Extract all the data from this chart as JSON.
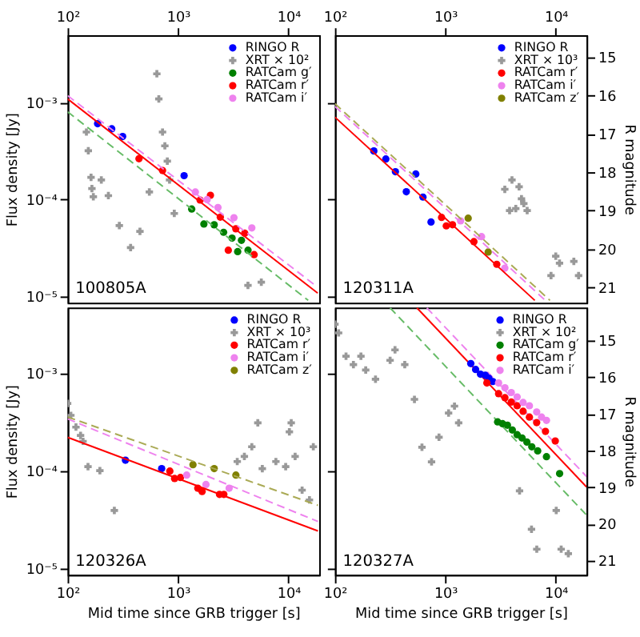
{
  "chart_data": [
    {
      "type": "scatter",
      "ylabel": "Flux density [Jy]",
      "annotations": [
        "100805A"
      ],
      "legend": "top right",
      "grid": false,
      "xlim": [
        100,
        19000
      ],
      "xticks": [
        {
          "value": 100,
          "label": "10²"
        },
        {
          "value": 1000,
          "label": "10³"
        },
        {
          "value": 10000,
          "label": "10⁴"
        }
      ],
      "ylim": [
        8.6e-06,
        0.005
      ],
      "yticks": [
        {
          "value": 1e-05,
          "label": "10⁻⁵"
        },
        {
          "value": 0.0001,
          "label": "10⁻⁴"
        },
        {
          "value": 0.001,
          "label": "10⁻³"
        }
      ],
      "log": "xy",
      "series": [
        {
          "name": "RINGO R",
          "color": "#0000ff",
          "marker": "circle",
          "x": [
            187,
            251,
            315,
            1135
          ],
          "values": [
            0.00061,
            0.00054,
            0.00045,
            0.000177
          ]
        },
        {
          "name": "XRT × 10²",
          "color": "#999999",
          "marker": "cross",
          "x": [
            148,
            154,
            163,
            166,
            171,
            202,
            234,
            294,
            372,
            452,
            550,
            643,
            670,
            724,
            760,
            800,
            838,
            925,
            4300,
            5680
          ],
          "values": [
            0.0005,
            0.00032,
            0.00017,
            0.00013,
            0.000107,
            0.00016,
            0.00011,
            5.4e-05,
            3.2e-05,
            4.7e-05,
            0.00012,
            0.002,
            0.0011,
            0.0005,
            0.00036,
            0.00025,
            0.00016,
            7.2e-05,
            1.3e-05,
            1.4e-05
          ]
        },
        {
          "name": "RATCam g′",
          "color": "#008000",
          "marker": "circle",
          "x": [
            1330,
            1715,
            2126,
            2587,
            3086,
            3470,
            3753,
            4305
          ],
          "values": [
            8e-05,
            5.6e-05,
            5.5e-05,
            4.6e-05,
            4e-05,
            2.9e-05,
            3.8e-05,
            3e-05
          ]
        },
        {
          "name": "RATCam r′",
          "color": "#ff0000",
          "marker": "circle",
          "x": [
            443,
            724,
            1585,
            1966,
            2415,
            2853,
            3337,
            4020,
            4890
          ],
          "values": [
            0.000265,
            0.0002,
            9.9e-05,
            0.000111,
            6.6e-05,
            3e-05,
            5e-05,
            4.5e-05,
            2.7e-05
          ]
        },
        {
          "name": "RATCam i′",
          "color": "#ee82ee",
          "marker": "circle",
          "x": [
            1436,
            1835,
            2300,
            3210,
            4660
          ],
          "values": [
            0.00012,
            0.0001,
            8.3e-05,
            6.5e-05,
            5.1e-05
          ]
        },
        {
          "type": "line",
          "color": "#ff0000",
          "line_style": "solid",
          "x": [
            100,
            18400
          ],
          "values": [
            0.0011,
            1.08e-05
          ]
        },
        {
          "type": "line",
          "color": "#66bb66",
          "line_style": "dashed",
          "x": [
            100,
            15100
          ],
          "values": [
            0.00081,
            9.1e-06
          ]
        },
        {
          "type": "line",
          "color": "#ee82ee",
          "line_style": "dashed",
          "x": [
            100,
            17500
          ],
          "values": [
            0.00119,
            1.3e-05
          ]
        }
      ]
    },
    {
      "type": "scatter",
      "y2label": "R magnitude",
      "annotations": [
        "120311A"
      ],
      "legend": "top right",
      "grid": false,
      "tick_labels": "x",
      "xlim": [
        100,
        19000
      ],
      "xticks": [
        {
          "value": 100,
          "label": "10²"
        },
        {
          "value": 1000,
          "label": "10³"
        },
        {
          "value": 10000,
          "label": "10⁴"
        }
      ],
      "ylim": [
        8.6e-06,
        0.005
      ],
      "yticks": [
        {
          "value": 1e-05,
          "label": null
        },
        {
          "value": 0.0001,
          "label": null
        },
        {
          "value": 0.001,
          "label": null
        }
      ],
      "log": "xy",
      "y2lim": [
        21.4,
        14.44
      ],
      "y2ticks": [
        {
          "value": 15,
          "label": "15"
        },
        {
          "value": 16,
          "label": "16"
        },
        {
          "value": 17,
          "label": "17"
        },
        {
          "value": 18,
          "label": "18"
        },
        {
          "value": 19,
          "label": "19"
        },
        {
          "value": 20,
          "label": "20"
        },
        {
          "value": 21,
          "label": "21"
        }
      ],
      "series": [
        {
          "name": "RINGO R",
          "color": "#0000ff",
          "marker": "circle",
          "axis": "y2",
          "x": [
            225,
            289,
            353,
            443,
            540,
            627,
            742
          ],
          "values": [
            17.45,
            17.66,
            17.99,
            18.51,
            18.05,
            18.65,
            19.3
          ]
        },
        {
          "name": "XRT × 10³",
          "color": "#999999",
          "marker": "cross",
          "x": [
            3456,
            3820,
            4013,
            4345,
            4657,
            4893,
            5140,
            5510,
            9060,
            10000,
            10820,
            14580,
            16100
          ],
          "values": [
            0.000128,
            7.7e-05,
            0.00016,
            8.1e-05,
            0.000136,
            0.000102,
            9.1e-05,
            7.7e-05,
            1.64e-05,
            2.6e-05,
            2.2e-05,
            2.3e-05,
            1.64e-05
          ]
        },
        {
          "name": "RATCam r′",
          "color": "#ff0000",
          "marker": "circle",
          "axis": "y2",
          "x": [
            924,
            1020,
            1161,
            1815,
            2922
          ],
          "values": [
            19.18,
            19.4,
            19.37,
            19.81,
            20.4
          ]
        },
        {
          "name": "RATCam i′",
          "color": "#ee82ee",
          "marker": "circle",
          "axis": "y2",
          "x": [
            1374,
            2127,
            3457
          ],
          "values": [
            19.27,
            19.68,
            20.5
          ]
        },
        {
          "name": "RATCam z′",
          "color": "#808000",
          "marker": "circle",
          "axis": "y2",
          "x": [
            1610,
            2443
          ],
          "values": [
            19.2,
            20.08
          ]
        },
        {
          "type": "line",
          "color": "#ff0000",
          "line_style": "solid",
          "axis": "y2",
          "x": [
            100,
            6460
          ],
          "values": [
            16.57,
            21.34
          ]
        },
        {
          "type": "line",
          "color": "#aaaa55",
          "line_style": "dashed",
          "axis": "y2",
          "x": [
            100,
            8870
          ],
          "values": [
            16.22,
            21.34
          ]
        },
        {
          "type": "line",
          "color": "#ee82ee",
          "line_style": "dashed",
          "axis": "y2",
          "x": [
            100,
            8040
          ],
          "values": [
            16.29,
            21.34
          ]
        }
      ]
    },
    {
      "type": "scatter",
      "ylabel": "Flux density [Jy]",
      "xlabel": "Mid time since GRB trigger [s]",
      "annotations": [
        "120326A"
      ],
      "legend": "top right",
      "grid": false,
      "xlim": [
        100,
        19000
      ],
      "xticks": [
        {
          "value": 100,
          "label": "10²"
        },
        {
          "value": 1000,
          "label": "10³"
        },
        {
          "value": 10000,
          "label": "10⁴"
        }
      ],
      "ylim": [
        8.5e-06,
        0.00475
      ],
      "yticks": [
        {
          "value": 1e-05,
          "label": "10⁻⁵"
        },
        {
          "value": 0.0001,
          "label": "10⁻⁴"
        },
        {
          "value": 0.001,
          "label": "10⁻³"
        }
      ],
      "log": "xy",
      "series": [
        {
          "name": "RINGO R",
          "color": "#0000ff",
          "marker": "circle",
          "x": [
            334,
            711
          ],
          "values": [
            0.000128,
            0.000105
          ]
        },
        {
          "name": "XRT × 10³",
          "color": "#999999",
          "marker": "cross",
          "x": [
            100,
            107,
            119,
            131,
            138,
            153,
            196,
            265,
            3440,
            3990,
            4660,
            5280,
            5800,
            7700,
            9440,
            10200,
            10600,
            11500,
            13300,
            15500,
            16800
          ],
          "values": [
            0.00049,
            0.00037,
            0.00028,
            0.00023,
            0.0002,
            0.00011,
            0.0001,
            3.9e-05,
            0.000124,
            0.00014,
            0.000176,
            0.00031,
            0.000105,
            0.000124,
            0.00011,
            0.00025,
            0.00031,
            0.00014,
            6.3e-05,
            5e-05,
            0.000176
          ]
        },
        {
          "name": "RATCam r′",
          "color": "#ff0000",
          "marker": "circle",
          "x": [
            843,
            931,
            1052,
            1510,
            1652,
            2375,
            2600
          ],
          "values": [
            9.9e-05,
            8.3e-05,
            8.5e-05,
            6.6e-05,
            6.1e-05,
            5.7e-05,
            5.7e-05
          ]
        },
        {
          "name": "RATCam i′",
          "color": "#ee82ee",
          "marker": "circle",
          "x": [
            1198,
            1791,
            2904
          ],
          "values": [
            9e-05,
            7.2e-05,
            6.6e-05
          ]
        },
        {
          "name": "RATCam z′",
          "color": "#808000",
          "marker": "circle",
          "x": [
            1366,
            2127,
            3343
          ],
          "values": [
            0.000115,
            0.000105,
            9e-05
          ]
        },
        {
          "type": "line",
          "color": "#ff0000",
          "line_style": "solid",
          "x": [
            100,
            18500
          ],
          "values": [
            0.00022,
            2.4e-05
          ]
        },
        {
          "type": "line",
          "color": "#ee82ee",
          "line_style": "dashed",
          "x": [
            100,
            18500
          ],
          "values": [
            0.00034,
            3e-05
          ]
        },
        {
          "type": "line",
          "color": "#aaaa55",
          "line_style": "dashed",
          "x": [
            100,
            18500
          ],
          "values": [
            0.000356,
            4.4e-05
          ]
        }
      ]
    },
    {
      "type": "scatter",
      "y2label": "R magnitude",
      "xlabel": "Mid time since GRB trigger [s]",
      "annotations": [
        "120327A"
      ],
      "legend": "top right",
      "grid": false,
      "tick_labels": "x",
      "xlim": [
        100,
        19000
      ],
      "xticks": [
        {
          "value": 100,
          "label": "10²"
        },
        {
          "value": 1000,
          "label": "10³"
        },
        {
          "value": 10000,
          "label": "10⁴"
        }
      ],
      "ylim": [
        8.5e-06,
        0.00475
      ],
      "yticks": [
        {
          "value": 1e-05,
          "label": null
        },
        {
          "value": 0.0001,
          "label": null
        },
        {
          "value": 0.001,
          "label": null
        }
      ],
      "log": "xy",
      "y2lim": [
        21.39,
        14.1
      ],
      "y2ticks": [
        {
          "value": 15,
          "label": "15"
        },
        {
          "value": 16,
          "label": "16"
        },
        {
          "value": 17,
          "label": "17"
        },
        {
          "value": 18,
          "label": "18"
        },
        {
          "value": 19,
          "label": "19"
        },
        {
          "value": 20,
          "label": "20"
        },
        {
          "value": 21,
          "label": "21"
        }
      ],
      "series": [
        {
          "name": "RINGO R",
          "color": "#0000ff",
          "marker": "circle",
          "axis": "y2",
          "x": [
            1700,
            1880,
            2080,
            2305,
            2480,
            2690
          ],
          "values": [
            15.63,
            15.79,
            15.92,
            15.95,
            16.03,
            16.12
          ]
        },
        {
          "name": "XRT × 10²",
          "color": "#999999",
          "marker": "cross",
          "x": [
            100,
            108,
            126,
            147,
            172,
            190,
            233,
            316,
            350,
            429,
            525,
            614,
            750,
            876,
            1070,
            1210,
            1320,
            4700,
            6030,
            6730,
            10100,
            11200,
            13000
          ],
          "values": [
            0.0032,
            0.0026,
            0.0015,
            0.00123,
            0.0015,
            0.00108,
            0.00087,
            0.00136,
            0.00174,
            0.00123,
            0.00054,
            0.000174,
            0.000123,
            0.00022,
            0.00039,
            0.00046,
            0.00031,
            6.2e-05,
            2.5e-05,
            1.56e-05,
            3.9e-05,
            1.56e-05,
            1.4e-05
          ]
        },
        {
          "name": "RATCam g′",
          "color": "#008000",
          "marker": "circle",
          "axis": "y2",
          "x": [
            2975,
            3295,
            3650,
            4040,
            4470,
            4950,
            5480,
            6070,
            6860,
            8240,
            10840
          ],
          "values": [
            17.22,
            17.27,
            17.31,
            17.44,
            17.57,
            17.66,
            17.77,
            17.9,
            18.01,
            18.17,
            18.63
          ]
        },
        {
          "name": "RATCam r′",
          "color": "#ff0000",
          "marker": "circle",
          "axis": "y2",
          "x": [
            2378,
            3035,
            3465,
            3955,
            4470,
            5060,
            5770,
            6715,
            8070,
            9900
          ],
          "values": [
            16.16,
            16.45,
            16.56,
            16.68,
            16.78,
            16.93,
            17.09,
            17.24,
            17.48,
            17.74
          ]
        },
        {
          "name": "RATCam i′",
          "color": "#ee82ee",
          "marker": "circle",
          "axis": "y2",
          "x": [
            3035,
            3465,
            3955,
            4470,
            5060,
            5770,
            6715,
            7440,
            8240
          ],
          "values": [
            16.16,
            16.29,
            16.42,
            16.54,
            16.69,
            16.78,
            16.95,
            17.09,
            17.18
          ]
        },
        {
          "type": "line",
          "color": "#ff0000",
          "line_style": "solid",
          "x": [
            553,
            19000
          ],
          "values": [
            0.0047,
            6.8e-05
          ]
        },
        {
          "type": "line",
          "color": "#ee82ee",
          "line_style": "dashed",
          "x": [
            680,
            19000
          ],
          "values": [
            0.0047,
            8.7e-05
          ]
        },
        {
          "type": "line",
          "color": "#66bb66",
          "line_style": "dashed",
          "x": [
            316,
            19000
          ],
          "values": [
            0.0047,
            3.5e-05
          ]
        }
      ]
    }
  ]
}
